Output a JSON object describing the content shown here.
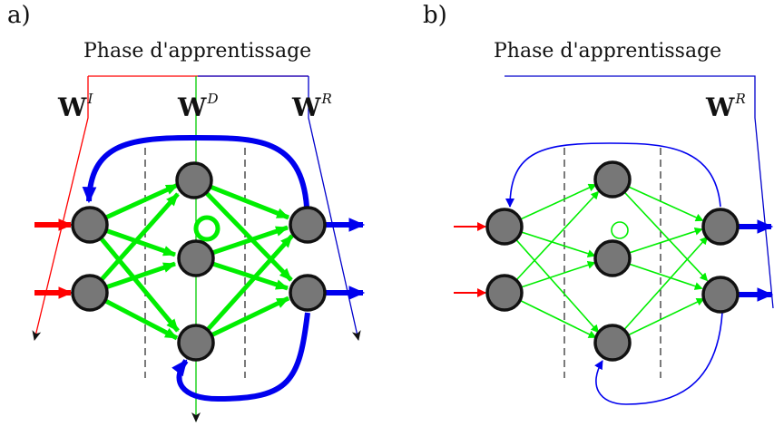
{
  "panels": {
    "a": {
      "label": "a)",
      "phase": "Phase d'apprentissage",
      "weights": [
        {
          "name": "W",
          "sup": "I"
        },
        {
          "name": "W",
          "sup": "D"
        },
        {
          "name": "W",
          "sup": "R"
        }
      ]
    },
    "b": {
      "label": "b)",
      "phase": "Phase d'apprentissage",
      "weights": [
        {
          "name": "W",
          "sup": "R"
        }
      ]
    }
  },
  "colors": {
    "input": "#ff0000",
    "reservoir": "#00ee00",
    "output": "#0000ee",
    "phase_line_input": "#ff0000",
    "phase_line_reservoir": "#00cc00",
    "phase_line_output": "#0000cc",
    "node_fill": "#777777",
    "node_stroke": "#111111",
    "divider": "#333333"
  }
}
